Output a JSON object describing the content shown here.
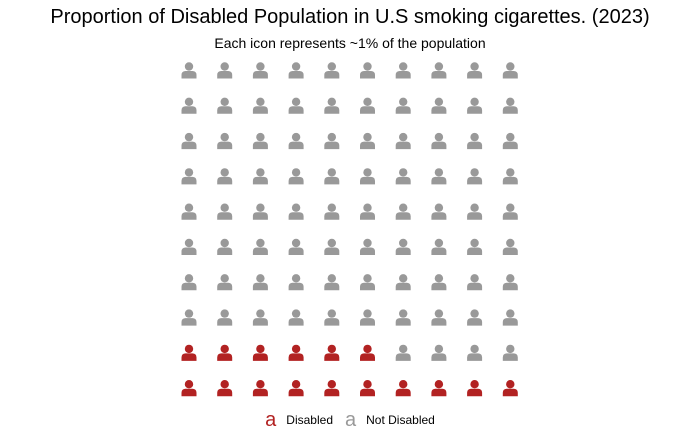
{
  "chart_data": {
    "type": "waffle",
    "title": "Proportion of Disabled Population in U.S smoking cigarettes. (2023)",
    "subtitle": "Each icon represents ~1% of the population",
    "rows": 10,
    "cols": 10,
    "icon": "person-icon",
    "series": [
      {
        "name": "Disabled",
        "count": 16,
        "color": "#b22222",
        "legend_glyph": "a"
      },
      {
        "name": "Not Disabled",
        "count": 84,
        "color": "#999999",
        "legend_glyph": "a"
      }
    ],
    "fill_order": "bottom-up, left-to-right",
    "legend_position": "bottom"
  }
}
